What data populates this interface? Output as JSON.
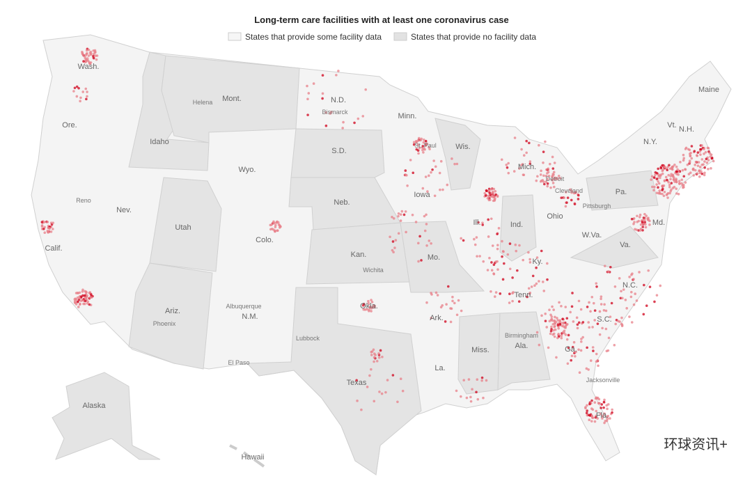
{
  "title": "Long-term care facilities with at least one coronavirus case",
  "legend": [
    "States that provide some facility data",
    "States that provide no facility data"
  ],
  "state_labels": [
    "Wash.",
    "Ore.",
    "Calif.",
    "Nev.",
    "Idaho",
    "Mont.",
    "Wyo.",
    "Utah",
    "Colo.",
    "Ariz.",
    "N.M.",
    "N.D.",
    "S.D.",
    "Neb.",
    "Kan.",
    "Okla.",
    "Texas",
    "Minn.",
    "Iowa",
    "Mo.",
    "Ark.",
    "La.",
    "Wis.",
    "Ill.",
    "Ind.",
    "Mich.",
    "Ohio",
    "Ky.",
    "Tenn.",
    "Miss.",
    "Ala.",
    "Ga.",
    "Fla.",
    "S.C.",
    "N.C.",
    "Va.",
    "W.Va.",
    "Pa.",
    "N.Y.",
    "Vt.",
    "N.H.",
    "Maine",
    "Md.",
    "Alaska",
    "Hawaii"
  ],
  "city_labels": [
    "Helena",
    "Bismarck",
    "Reno",
    "Albuquerque",
    "Phoenix",
    "El Paso",
    "Lubbock",
    "Wichita",
    "Birmingham",
    "Jacksonville",
    "Pittsburgh",
    "St. Paul",
    "Detroit",
    "Cleveland"
  ],
  "watermark": "环球资讯+"
}
